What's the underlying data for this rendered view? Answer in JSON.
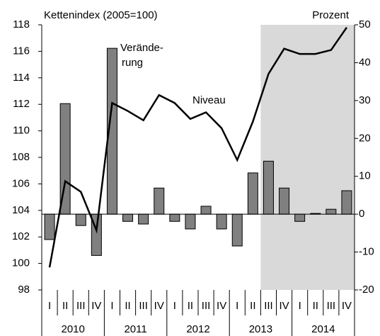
{
  "chart_data": {
    "type": "bar-line",
    "ylabel": "Kettenindex (2005=100)",
    "y2label": "Prozent",
    "categories": [
      "I",
      "II",
      "III",
      "IV",
      "I",
      "II",
      "III",
      "IV",
      "I",
      "II",
      "III",
      "IV",
      "I",
      "II",
      "III",
      "IV",
      "I",
      "II",
      "III",
      "IV"
    ],
    "groups": [
      "2010",
      "2011",
      "2012",
      "2013",
      "2014"
    ],
    "series": [
      {
        "type": "bar",
        "axis": "y2",
        "color": "#808080",
        "values": [
          -6.7,
          29.2,
          -3.0,
          -10.9,
          43.8,
          -1.9,
          -2.6,
          6.9,
          -1.9,
          -3.9,
          2.1,
          -3.9,
          -8.4,
          10.9,
          14.0,
          6.9,
          -1.9,
          0.2,
          1.3,
          6.2
        ]
      },
      {
        "type": "line",
        "axis": "y",
        "color": "#000000",
        "values": [
          99.7,
          106.2,
          105.4,
          102.5,
          112.1,
          111.5,
          110.8,
          112.7,
          112.1,
          110.9,
          111.4,
          110.2,
          107.8,
          110.7,
          114.3,
          116.2,
          115.8,
          115.8,
          116.1,
          117.8
        ]
      }
    ],
    "annotations": [
      [
        "Verände-",
        "rung"
      ],
      [
        "Niveau"
      ]
    ],
    "shade": {
      "from": 14,
      "to": 19,
      "color": "#d9d9d9"
    },
    "ylim": [
      98,
      118
    ],
    "yticks": [
      98,
      100,
      102,
      104,
      106,
      108,
      110,
      112,
      114,
      116,
      118
    ],
    "y2lim": [
      -20,
      50
    ],
    "y2ticks": [
      -20,
      -10,
      0,
      10,
      20,
      30,
      40,
      50
    ],
    "grid": false
  }
}
